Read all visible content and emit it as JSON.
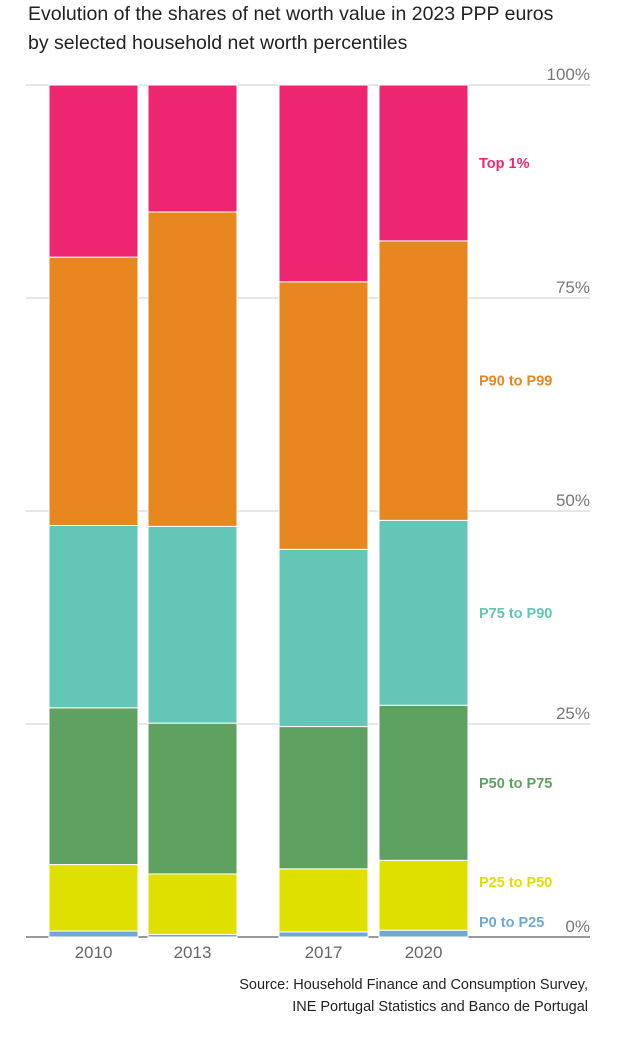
{
  "chart_data": {
    "type": "bar",
    "stacked": true,
    "title": "Evolution of the shares of net worth value in 2023 PPP euros",
    "subtitle": "by selected household net worth percentiles",
    "categories": [
      "2010",
      "2013",
      "2017",
      "2020"
    ],
    "ylim": [
      0,
      100
    ],
    "yticks": [
      0,
      25,
      50,
      75,
      100
    ],
    "ytick_labels": [
      "0%",
      "25%",
      "50%",
      "75%",
      "100%"
    ],
    "grid": true,
    "legend_placement": "right, inline labels",
    "series": [
      {
        "name": "P0 to P25",
        "color": "#6fa8d6",
        "values": [
          0.7,
          0.3,
          0.6,
          0.8
        ]
      },
      {
        "name": "P25 to P50",
        "color": "#dfe000",
        "values": [
          7.8,
          7.1,
          7.4,
          8.2
        ]
      },
      {
        "name": "P50 to P75",
        "color": "#5fa160",
        "values": [
          18.4,
          17.7,
          16.7,
          18.2
        ]
      },
      {
        "name": "P75 to P90",
        "color": "#64c6b6",
        "values": [
          21.4,
          23.1,
          20.8,
          21.7
        ]
      },
      {
        "name": "P90 to P99",
        "color": "#e8861f",
        "values": [
          31.5,
          36.9,
          31.4,
          32.8
        ]
      },
      {
        "name": "Top 1%",
        "color": "#ee2570",
        "values": [
          20.2,
          14.9,
          23.1,
          18.3
        ]
      }
    ]
  },
  "source": {
    "line1": "Source: Household Finance and Consumption Survey,",
    "line2": "INE Portugal Statistics and Banco de Portugal"
  }
}
